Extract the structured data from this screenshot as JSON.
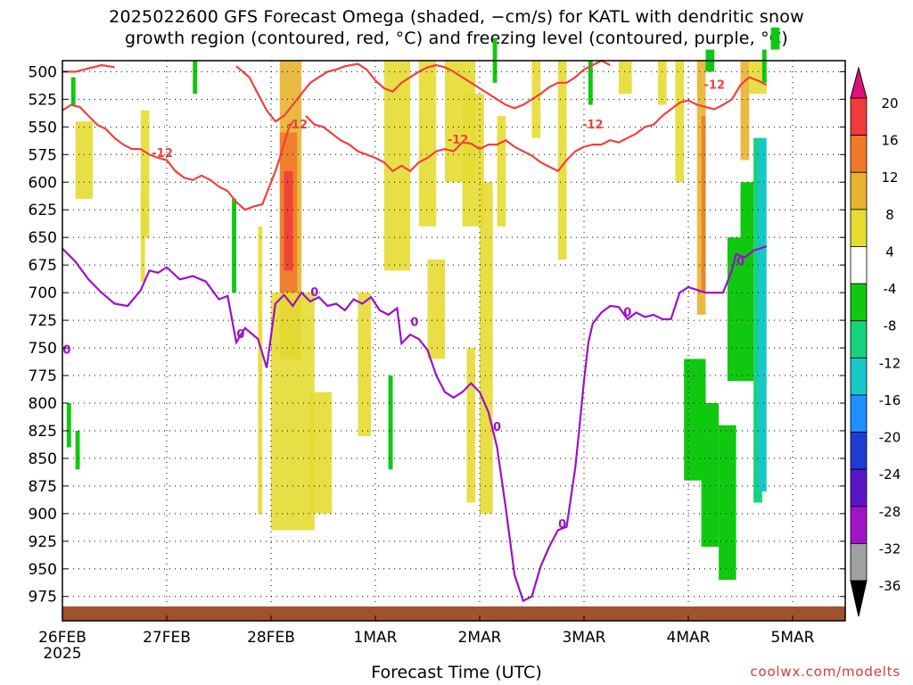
{
  "title": {
    "line1": "2025022600 GFS Forecast Omega (shaded, −cm/s) for KATL with dendritic snow",
    "line2": "growth region (contoured, red, °C) and freezing level (contoured, purple, °C)"
  },
  "xlabel": "Forecast Time (UTC)",
  "credit": "coolwx.com/modelts",
  "colors": {
    "freezing_level": "#9b11c8",
    "dendritic": "#f04040",
    "terrain": "#a0522d"
  },
  "chart_data": {
    "type": "heatmap",
    "title": "2025022600 GFS Forecast Omega (shaded, −cm/s) for KATL with dendritic snow growth region (contoured, red, °C) and freezing level (contoured, purple, °C)",
    "xlabel": "Forecast Time (UTC)",
    "ylabel": "",
    "y_axis_inverted": true,
    "x_range_hours": [
      0,
      162
    ],
    "y_ticks": [
      500,
      525,
      550,
      575,
      600,
      625,
      650,
      675,
      700,
      725,
      750,
      775,
      800,
      825,
      850,
      875,
      900,
      925,
      950,
      975
    ],
    "x_ticks": [
      {
        "hour": 0,
        "label": "26FEB",
        "sub": "2025"
      },
      {
        "hour": 24,
        "label": "27FEB",
        "sub": ""
      },
      {
        "hour": 48,
        "label": "28FEB",
        "sub": ""
      },
      {
        "hour": 72,
        "label": "1MAR",
        "sub": ""
      },
      {
        "hour": 96,
        "label": "2MAR",
        "sub": ""
      },
      {
        "hour": 120,
        "label": "3MAR",
        "sub": ""
      },
      {
        "hour": 144,
        "label": "4MAR",
        "sub": ""
      },
      {
        "hour": 168,
        "label": "5MAR",
        "sub": ""
      }
    ],
    "grid": true,
    "colorbar": {
      "levels": [
        20,
        16,
        12,
        8,
        4,
        -4,
        -8,
        -12,
        -16,
        -20,
        -24,
        -28,
        -32,
        -36
      ],
      "bands": [
        {
          "lo": 16,
          "hi": 20,
          "color": "#f03c3c"
        },
        {
          "lo": 12,
          "hi": 16,
          "color": "#f07a2a"
        },
        {
          "lo": 8,
          "hi": 12,
          "color": "#e9b32f"
        },
        {
          "lo": 4,
          "hi": 8,
          "color": "#e6dc32"
        },
        {
          "lo": -4,
          "hi": 4,
          "color": "#ffffff"
        },
        {
          "lo": -8,
          "hi": -4,
          "color": "#10c810"
        },
        {
          "lo": -12,
          "hi": -8,
          "color": "#18d27a"
        },
        {
          "lo": -16,
          "hi": -12,
          "color": "#18c8c8"
        },
        {
          "lo": -20,
          "hi": -16,
          "color": "#1e90ff"
        },
        {
          "lo": -24,
          "hi": -20,
          "color": "#1e3cd2"
        },
        {
          "lo": -28,
          "hi": -24,
          "color": "#5a14c8"
        },
        {
          "lo": -32,
          "hi": -28,
          "color": "#a014c8"
        },
        {
          "lo": -36,
          "hi": -32,
          "color": "#a0a0a0"
        }
      ],
      "top_arrow_color": "#e0107a",
      "bottom_arrow_color": "#000000"
    },
    "freezing_level": {
      "label": "0",
      "points": [
        [
          0,
          660
        ],
        [
          3,
          672
        ],
        [
          6,
          688
        ],
        [
          9,
          700
        ],
        [
          12,
          710
        ],
        [
          15,
          712
        ],
        [
          18,
          698
        ],
        [
          20,
          680
        ],
        [
          22,
          682
        ],
        [
          24,
          677
        ],
        [
          27,
          688
        ],
        [
          30,
          685
        ],
        [
          33,
          690
        ],
        [
          36,
          706
        ],
        [
          38,
          703
        ],
        [
          40,
          745
        ],
        [
          42,
          732
        ],
        [
          45,
          742
        ],
        [
          47,
          768
        ],
        [
          49,
          710
        ],
        [
          51,
          702
        ],
        [
          53,
          712
        ],
        [
          55,
          700
        ],
        [
          57,
          708
        ],
        [
          59,
          704
        ],
        [
          61,
          712
        ],
        [
          63,
          710
        ],
        [
          65,
          716
        ],
        [
          67,
          706
        ],
        [
          69,
          710
        ],
        [
          71,
          704
        ],
        [
          73,
          716
        ],
        [
          75,
          720
        ],
        [
          77,
          714
        ],
        [
          78,
          746
        ],
        [
          80,
          738
        ],
        [
          82,
          742
        ],
        [
          84,
          752
        ],
        [
          86,
          775
        ],
        [
          88,
          790
        ],
        [
          90,
          795
        ],
        [
          92,
          790
        ],
        [
          94,
          782
        ],
        [
          96,
          790
        ],
        [
          98,
          808
        ],
        [
          100,
          840
        ],
        [
          102,
          895
        ],
        [
          104,
          955
        ],
        [
          106,
          979
        ],
        [
          108,
          975
        ],
        [
          110,
          948
        ],
        [
          112,
          930
        ],
        [
          114,
          915
        ],
        [
          116,
          912
        ],
        [
          117,
          885
        ],
        [
          118,
          858
        ],
        [
          119,
          820
        ],
        [
          120,
          780
        ],
        [
          121,
          745
        ],
        [
          122,
          728
        ],
        [
          124,
          718
        ],
        [
          126,
          712
        ],
        [
          128,
          713
        ],
        [
          130,
          724
        ],
        [
          132,
          718
        ],
        [
          134,
          722
        ],
        [
          136,
          720
        ],
        [
          138,
          724
        ],
        [
          140,
          724
        ],
        [
          142,
          700
        ],
        [
          144,
          695
        ],
        [
          148,
          700
        ],
        [
          152,
          700
        ],
        [
          154,
          680
        ],
        [
          155,
          665
        ],
        [
          157,
          668
        ],
        [
          159,
          662
        ],
        [
          162,
          658
        ]
      ]
    },
    "dendritic_upper": {
      "label": "-12",
      "points": [
        [
          0,
          535
        ],
        [
          2,
          530
        ],
        [
          4,
          532
        ],
        [
          6,
          540
        ],
        [
          8,
          548
        ],
        [
          10,
          552
        ],
        [
          12,
          560
        ],
        [
          14,
          566
        ],
        [
          16,
          570
        ],
        [
          18,
          570
        ],
        [
          20,
          575
        ],
        [
          22,
          578
        ],
        [
          24,
          580
        ],
        [
          26,
          590
        ],
        [
          28,
          596
        ],
        [
          30,
          598
        ],
        [
          32,
          594
        ],
        [
          34,
          598
        ],
        [
          36,
          604
        ],
        [
          38,
          608
        ],
        [
          40,
          618
        ],
        [
          42,
          625
        ],
        [
          44,
          622
        ],
        [
          46,
          620
        ],
        [
          48,
          600
        ],
        [
          49,
          590
        ],
        [
          50,
          578
        ],
        [
          51,
          565
        ],
        [
          52,
          552
        ],
        [
          53,
          545
        ]
      ]
    },
    "dendritic_lower_segments": [
      {
        "label": "-12",
        "points": [
          [
            56,
            540
          ],
          [
            58,
            548
          ],
          [
            60,
            550
          ],
          [
            62,
            556
          ],
          [
            64,
            562
          ],
          [
            66,
            566
          ],
          [
            68,
            572
          ],
          [
            70,
            575
          ],
          [
            72,
            578
          ],
          [
            74,
            582
          ],
          [
            76,
            590
          ],
          [
            78,
            585
          ],
          [
            80,
            590
          ],
          [
            82,
            582
          ],
          [
            84,
            578
          ],
          [
            86,
            572
          ],
          [
            88,
            570
          ],
          [
            90,
            572
          ],
          [
            92,
            564
          ],
          [
            94,
            565
          ],
          [
            96,
            570
          ],
          [
            98,
            566
          ],
          [
            100,
            566
          ],
          [
            102,
            562
          ],
          [
            104,
            568
          ],
          [
            106,
            572
          ],
          [
            108,
            576
          ],
          [
            110,
            582
          ],
          [
            112,
            586
          ],
          [
            114,
            590
          ],
          [
            116,
            580
          ],
          [
            118,
            572
          ],
          [
            120,
            568
          ],
          [
            122,
            566
          ],
          [
            124,
            566
          ],
          [
            126,
            562
          ],
          [
            128,
            564
          ],
          [
            130,
            560
          ],
          [
            132,
            556
          ],
          [
            134,
            550
          ],
          [
            136,
            548
          ],
          [
            138,
            540
          ],
          [
            140,
            534
          ],
          [
            142,
            528
          ],
          [
            144,
            526
          ],
          [
            146,
            530
          ],
          [
            148,
            532
          ],
          [
            150,
            534
          ],
          [
            152,
            530
          ],
          [
            154,
            525
          ],
          [
            156,
            512
          ],
          [
            158,
            505
          ],
          [
            160,
            508
          ],
          [
            162,
            512
          ]
        ]
      }
    ],
    "dendritic_top_segments": [
      {
        "points": [
          [
            0,
            500
          ],
          [
            3,
            500
          ],
          [
            6,
            497
          ],
          [
            9,
            494
          ],
          [
            12,
            496
          ]
        ]
      },
      {
        "points": [
          [
            40,
            495
          ],
          [
            43,
            505
          ],
          [
            45,
            520
          ],
          [
            47,
            535
          ],
          [
            49,
            545
          ],
          [
            51,
            540
          ],
          [
            53,
            530
          ],
          [
            55,
            520
          ],
          [
            57,
            510
          ],
          [
            59,
            505
          ],
          [
            61,
            500
          ],
          [
            63,
            498
          ],
          [
            65,
            495
          ],
          [
            68,
            493
          ],
          [
            70,
            498
          ],
          [
            72,
            508
          ],
          [
            74,
            515
          ],
          [
            76,
            518
          ],
          [
            78,
            510
          ],
          [
            80,
            505
          ],
          [
            82,
            500
          ],
          [
            84,
            496
          ],
          [
            86,
            494
          ],
          [
            88,
            496
          ],
          [
            90,
            500
          ],
          [
            92,
            505
          ],
          [
            94,
            510
          ],
          [
            96,
            515
          ],
          [
            98,
            520
          ],
          [
            100,
            525
          ],
          [
            102,
            530
          ],
          [
            104,
            533
          ],
          [
            106,
            530
          ],
          [
            108,
            525
          ],
          [
            110,
            520
          ],
          [
            112,
            514
          ],
          [
            114,
            510
          ],
          [
            116,
            510
          ],
          [
            118,
            505
          ],
          [
            120,
            498
          ],
          [
            122,
            494
          ],
          [
            124,
            490
          ],
          [
            126,
            494
          ]
        ]
      }
    ],
    "terrain_top_hpa": 984
  }
}
